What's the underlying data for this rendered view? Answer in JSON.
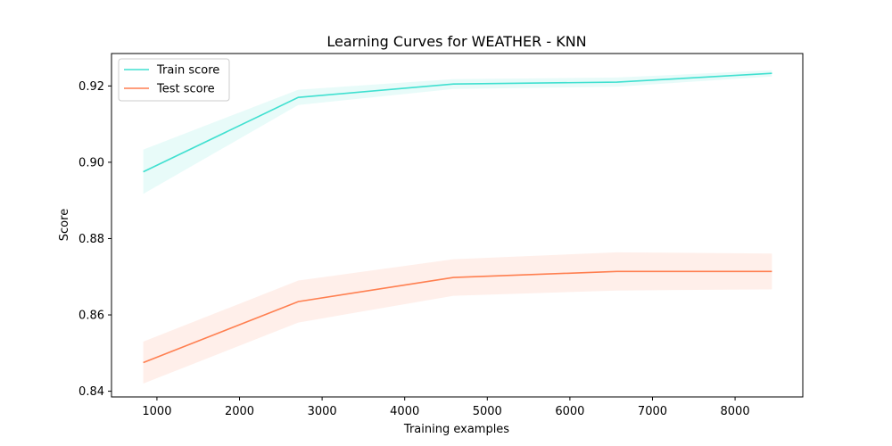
{
  "chart_data": {
    "type": "line",
    "title": "Learning Curves for WEATHER - KNN",
    "xlabel": "Training examples",
    "ylabel": "Score",
    "xlim": [
      450,
      8820
    ],
    "ylim": [
      0.8385,
      0.9285
    ],
    "x": [
      834,
      2712,
      4590,
      6568,
      8446
    ],
    "xticks": [
      1000,
      2000,
      3000,
      4000,
      5000,
      6000,
      7000,
      8000
    ],
    "xtick_labels": [
      "1000",
      "2000",
      "3000",
      "4000",
      "5000",
      "6000",
      "7000",
      "8000"
    ],
    "yticks": [
      0.84,
      0.86,
      0.88,
      0.9,
      0.92
    ],
    "ytick_labels": [
      "0.84",
      "0.86",
      "0.88",
      "0.90",
      "0.92"
    ],
    "grid": false,
    "legend_position": "top-left",
    "series": [
      {
        "name": "Train score",
        "color": "#40e0d0",
        "values": [
          0.8975,
          0.917,
          0.9205,
          0.921,
          0.9233
        ],
        "std": [
          0.0058,
          0.002,
          0.0013,
          0.0012,
          0.0008
        ]
      },
      {
        "name": "Test score",
        "color": "#ff7f50",
        "values": [
          0.8475,
          0.8635,
          0.8698,
          0.8714,
          0.8714
        ],
        "std": [
          0.0055,
          0.0055,
          0.0048,
          0.005,
          0.0047
        ]
      }
    ]
  }
}
